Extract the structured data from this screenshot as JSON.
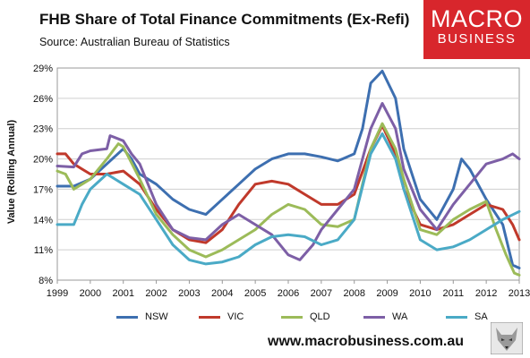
{
  "header": {
    "title": "FHB Share of Total Finance Commitments (Ex-Refi)",
    "subtitle": "Source: Australian Bureau of Statistics"
  },
  "logo": {
    "line1": "MACRO",
    "line2": "BUSINESS",
    "color": "#d8262c"
  },
  "footer": {
    "website": "www.macrobusiness.com.au"
  },
  "chart_data": {
    "type": "line",
    "title": "FHB Share of Total Finance Commitments (Ex-Refi)",
    "ylabel": "Value (Rolling Annual)",
    "xlabel": "",
    "xlim": [
      1999,
      2013
    ],
    "ylim": [
      8,
      29
    ],
    "x_ticks": [
      "1999",
      "2000",
      "2001",
      "2002",
      "2003",
      "2004",
      "2005",
      "2006",
      "2007",
      "2008",
      "2009",
      "2010",
      "2011",
      "2012",
      "2013"
    ],
    "y_ticks": [
      "8%",
      "11%",
      "14%",
      "17%",
      "20%",
      "23%",
      "26%",
      "29%"
    ],
    "y_tick_values": [
      8,
      11,
      14,
      17,
      20,
      23,
      26,
      29
    ],
    "grid": "horizontal",
    "legend_position": "bottom",
    "series": [
      {
        "name": "NSW",
        "color": "#3d6fb0",
        "points": [
          [
            1999,
            17.3
          ],
          [
            1999.5,
            17.3
          ],
          [
            2000,
            18.0
          ],
          [
            2000.5,
            19.5
          ],
          [
            2001,
            21.0
          ],
          [
            2001.25,
            20.0
          ],
          [
            2001.5,
            18.5
          ],
          [
            2002,
            17.5
          ],
          [
            2002.5,
            16.0
          ],
          [
            2003,
            15.0
          ],
          [
            2003.5,
            14.5
          ],
          [
            2004,
            16.0
          ],
          [
            2004.5,
            17.5
          ],
          [
            2005,
            19.0
          ],
          [
            2005.5,
            20.0
          ],
          [
            2006,
            20.5
          ],
          [
            2006.5,
            20.5
          ],
          [
            2007,
            20.2
          ],
          [
            2007.5,
            19.8
          ],
          [
            2008,
            20.5
          ],
          [
            2008.25,
            23.0
          ],
          [
            2008.5,
            27.5
          ],
          [
            2008.85,
            28.7
          ],
          [
            2009.25,
            26.0
          ],
          [
            2009.5,
            21.0
          ],
          [
            2010,
            16.0
          ],
          [
            2010.5,
            14.0
          ],
          [
            2011,
            17.0
          ],
          [
            2011.25,
            20.0
          ],
          [
            2011.5,
            19.0
          ],
          [
            2012,
            16.0
          ],
          [
            2012.5,
            13.5
          ],
          [
            2012.8,
            9.5
          ],
          [
            2013,
            9.2
          ]
        ]
      },
      {
        "name": "VIC",
        "color": "#c0392b",
        "points": [
          [
            1999,
            20.5
          ],
          [
            1999.25,
            20.5
          ],
          [
            1999.5,
            19.5
          ],
          [
            1999.75,
            19.0
          ],
          [
            2000,
            18.5
          ],
          [
            2000.5,
            18.5
          ],
          [
            2001,
            18.8
          ],
          [
            2001.5,
            17.5
          ],
          [
            2002,
            15.0
          ],
          [
            2002.5,
            13.0
          ],
          [
            2003,
            12.0
          ],
          [
            2003.5,
            11.7
          ],
          [
            2004,
            13.0
          ],
          [
            2004.5,
            15.5
          ],
          [
            2005,
            17.5
          ],
          [
            2005.5,
            17.8
          ],
          [
            2006,
            17.5
          ],
          [
            2006.5,
            16.5
          ],
          [
            2007,
            15.5
          ],
          [
            2007.5,
            15.5
          ],
          [
            2008,
            16.5
          ],
          [
            2008.5,
            21.0
          ],
          [
            2008.85,
            23.3
          ],
          [
            2009.25,
            20.5
          ],
          [
            2009.5,
            17.0
          ],
          [
            2010,
            13.5
          ],
          [
            2010.5,
            13.0
          ],
          [
            2011,
            13.5
          ],
          [
            2011.5,
            14.5
          ],
          [
            2012,
            15.5
          ],
          [
            2012.5,
            15.0
          ],
          [
            2012.8,
            13.5
          ],
          [
            2013,
            12.0
          ]
        ]
      },
      {
        "name": "QLD",
        "color": "#9cbb59",
        "points": [
          [
            1999,
            18.8
          ],
          [
            1999.25,
            18.5
          ],
          [
            1999.5,
            17.0
          ],
          [
            1999.75,
            17.5
          ],
          [
            2000,
            18.0
          ],
          [
            2000.5,
            20.0
          ],
          [
            2000.85,
            21.5
          ],
          [
            2001,
            21.2
          ],
          [
            2001.5,
            18.0
          ],
          [
            2002,
            14.5
          ],
          [
            2002.5,
            12.5
          ],
          [
            2003,
            11.0
          ],
          [
            2003.5,
            10.3
          ],
          [
            2004,
            11.0
          ],
          [
            2004.5,
            12.0
          ],
          [
            2005,
            13.0
          ],
          [
            2005.5,
            14.5
          ],
          [
            2006,
            15.5
          ],
          [
            2006.5,
            15.0
          ],
          [
            2007,
            13.5
          ],
          [
            2007.5,
            13.3
          ],
          [
            2008,
            14.0
          ],
          [
            2008.5,
            21.0
          ],
          [
            2008.85,
            23.5
          ],
          [
            2009.25,
            21.0
          ],
          [
            2009.5,
            18.0
          ],
          [
            2010,
            13.0
          ],
          [
            2010.5,
            12.5
          ],
          [
            2011,
            14.0
          ],
          [
            2011.5,
            15.0
          ],
          [
            2012,
            15.8
          ],
          [
            2012.3,
            13.0
          ],
          [
            2012.6,
            10.5
          ],
          [
            2012.85,
            8.7
          ],
          [
            2013,
            8.5
          ]
        ]
      },
      {
        "name": "WA",
        "color": "#7d5fa6",
        "points": [
          [
            1999,
            19.3
          ],
          [
            1999.5,
            19.2
          ],
          [
            1999.75,
            20.5
          ],
          [
            2000,
            20.8
          ],
          [
            2000.5,
            21.0
          ],
          [
            2000.6,
            22.3
          ],
          [
            2001,
            21.8
          ],
          [
            2001.25,
            20.5
          ],
          [
            2001.5,
            19.5
          ],
          [
            2002,
            15.5
          ],
          [
            2002.5,
            13.0
          ],
          [
            2003,
            12.2
          ],
          [
            2003.5,
            12.0
          ],
          [
            2004,
            13.5
          ],
          [
            2004.5,
            14.5
          ],
          [
            2005,
            13.5
          ],
          [
            2005.5,
            12.5
          ],
          [
            2006,
            10.5
          ],
          [
            2006.35,
            10.0
          ],
          [
            2006.75,
            11.5
          ],
          [
            2007,
            13.0
          ],
          [
            2007.5,
            15.0
          ],
          [
            2008,
            17.0
          ],
          [
            2008.5,
            23.0
          ],
          [
            2008.85,
            25.5
          ],
          [
            2009.25,
            23.0
          ],
          [
            2009.5,
            19.0
          ],
          [
            2010,
            15.0
          ],
          [
            2010.5,
            13.0
          ],
          [
            2011,
            15.5
          ],
          [
            2011.5,
            17.5
          ],
          [
            2012,
            19.5
          ],
          [
            2012.5,
            20.0
          ],
          [
            2012.8,
            20.5
          ],
          [
            2013,
            20.0
          ]
        ]
      },
      {
        "name": "SA",
        "color": "#4aaac6",
        "points": [
          [
            1999,
            13.5
          ],
          [
            1999.5,
            13.5
          ],
          [
            1999.75,
            15.5
          ],
          [
            2000,
            17.0
          ],
          [
            2000.5,
            18.5
          ],
          [
            2000.75,
            18.0
          ],
          [
            2001,
            17.5
          ],
          [
            2001.5,
            16.5
          ],
          [
            2002,
            14.0
          ],
          [
            2002.5,
            11.5
          ],
          [
            2003,
            10.0
          ],
          [
            2003.5,
            9.6
          ],
          [
            2004,
            9.8
          ],
          [
            2004.5,
            10.3
          ],
          [
            2005,
            11.5
          ],
          [
            2005.5,
            12.3
          ],
          [
            2006,
            12.5
          ],
          [
            2006.5,
            12.3
          ],
          [
            2007,
            11.5
          ],
          [
            2007.5,
            12.0
          ],
          [
            2008,
            14.0
          ],
          [
            2008.5,
            20.5
          ],
          [
            2008.85,
            22.5
          ],
          [
            2009.25,
            20.0
          ],
          [
            2009.5,
            17.0
          ],
          [
            2010,
            12.0
          ],
          [
            2010.5,
            11.0
          ],
          [
            2011,
            11.3
          ],
          [
            2011.5,
            12.0
          ],
          [
            2012,
            13.0
          ],
          [
            2012.5,
            14.0
          ],
          [
            2013,
            14.8
          ]
        ]
      }
    ]
  }
}
